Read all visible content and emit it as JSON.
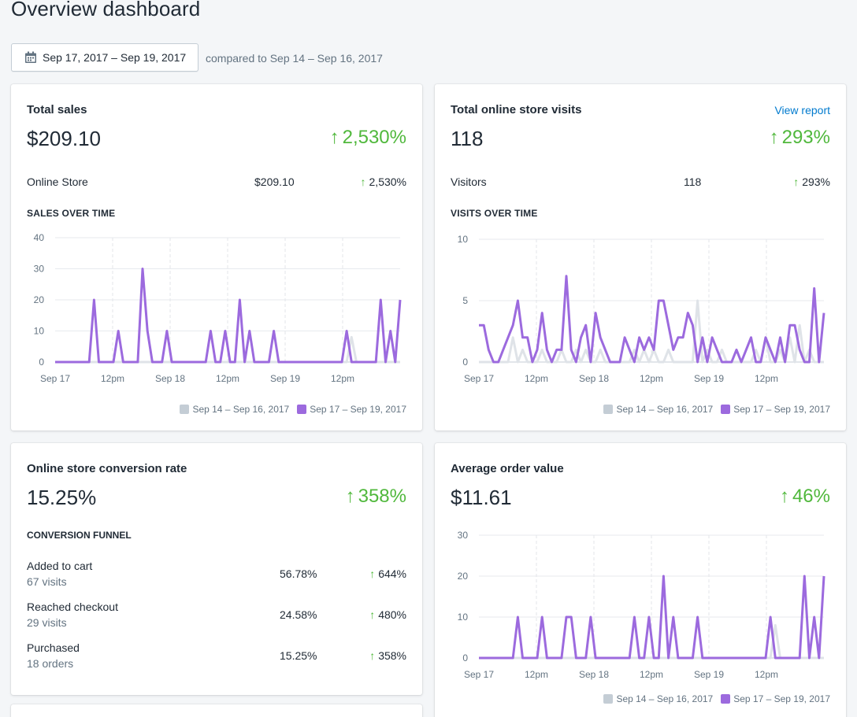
{
  "header": {
    "title": "Overview dashboard"
  },
  "date_range": {
    "label": "Sep 17, 2017 – Sep 19, 2017",
    "compare": "compared to Sep 14 – Sep 16, 2017"
  },
  "colors": {
    "current": "#9c6ade",
    "previous": "#dfe3e8",
    "positive": "#50b83c",
    "link": "#007ace"
  },
  "legend": {
    "previous": "Sep 14 – Sep 16, 2017",
    "current": "Sep 17 – Sep 19, 2017"
  },
  "total_sales": {
    "title": "Total sales",
    "value": "$209.10",
    "change": "2,530%",
    "row": {
      "label": "Online Store",
      "value": "$209.10",
      "change": "2,530%"
    },
    "section": "SALES OVER TIME"
  },
  "visits": {
    "title": "Total online store visits",
    "link": "View report",
    "value": "118",
    "change": "293%",
    "row": {
      "label": "Visitors",
      "value": "118",
      "change": "293%"
    },
    "section": "VISITS OVER TIME"
  },
  "conversion": {
    "title": "Online store conversion rate",
    "value": "15.25%",
    "change": "358%",
    "section": "CONVERSION FUNNEL",
    "rows": [
      {
        "label": "Added to cart",
        "sub": "67 visits",
        "pct": "56.78%",
        "change": "644%"
      },
      {
        "label": "Reached checkout",
        "sub": "29 visits",
        "pct": "24.58%",
        "change": "480%"
      },
      {
        "label": "Purchased",
        "sub": "18 orders",
        "pct": "15.25%",
        "change": "358%"
      }
    ]
  },
  "aov": {
    "title": "Average order value",
    "value": "$11.61",
    "change": "46%"
  },
  "chart_data": [
    {
      "id": "sales",
      "type": "line",
      "title": "SALES OVER TIME",
      "ylim": [
        0,
        40
      ],
      "yticks": [
        0,
        10,
        20,
        30,
        40
      ],
      "x_labels": [
        "Sep 17",
        "12pm",
        "Sep 18",
        "12pm",
        "Sep 19",
        "12pm"
      ],
      "x": [
        0,
        1,
        2,
        3,
        4,
        5,
        6,
        7,
        8,
        9,
        10,
        11,
        12,
        13,
        14,
        15,
        16,
        17,
        18,
        19,
        20,
        21,
        22,
        23,
        24,
        25,
        26,
        27,
        28,
        29,
        30,
        31,
        32,
        33,
        34,
        35,
        36,
        37,
        38,
        39,
        40,
        41,
        42,
        43,
        44,
        45,
        46,
        47,
        48,
        49,
        50,
        51,
        52,
        53,
        54,
        55,
        56,
        57,
        58,
        59,
        60,
        61,
        62,
        63,
        64,
        65,
        66,
        67,
        68,
        69,
        70,
        71
      ],
      "series": [
        {
          "name": "Sep 14 – Sep 16, 2017",
          "values": [
            0,
            0,
            0,
            0,
            0,
            0,
            0,
            0,
            0,
            0,
            0,
            0,
            0,
            0,
            0,
            0,
            0,
            0,
            0,
            0,
            0,
            0,
            0,
            0,
            0,
            0,
            0,
            0,
            0,
            0,
            0,
            0,
            0,
            0,
            0,
            0,
            0,
            0,
            0,
            0,
            0,
            0,
            0,
            0,
            0,
            0,
            0,
            0,
            0,
            0,
            0,
            0,
            0,
            0,
            0,
            0,
            0,
            0,
            0,
            0,
            0,
            8,
            0,
            0,
            0,
            0,
            0,
            0,
            0,
            0,
            0,
            0
          ]
        },
        {
          "name": "Sep 17 – Sep 19, 2017",
          "values": [
            0,
            0,
            0,
            0,
            0,
            0,
            0,
            0,
            20,
            0,
            0,
            0,
            0,
            10,
            0,
            0,
            0,
            0,
            30,
            10,
            0,
            0,
            0,
            10,
            0,
            0,
            0,
            0,
            0,
            0,
            0,
            0,
            10,
            0,
            0,
            10,
            0,
            0,
            20,
            0,
            10,
            0,
            0,
            0,
            0,
            10,
            0,
            0,
            0,
            0,
            0,
            0,
            0,
            0,
            0,
            0,
            0,
            0,
            0,
            0,
            10,
            0,
            0,
            0,
            0,
            0,
            0,
            20,
            0,
            10,
            0,
            20
          ]
        }
      ]
    },
    {
      "id": "visits",
      "type": "line",
      "title": "VISITS OVER TIME",
      "ylim": [
        0,
        10
      ],
      "yticks": [
        0,
        5,
        10
      ],
      "x_labels": [
        "Sep 17",
        "12pm",
        "Sep 18",
        "12pm",
        "Sep 19",
        "12pm"
      ],
      "x": [
        0,
        1,
        2,
        3,
        4,
        5,
        6,
        7,
        8,
        9,
        10,
        11,
        12,
        13,
        14,
        15,
        16,
        17,
        18,
        19,
        20,
        21,
        22,
        23,
        24,
        25,
        26,
        27,
        28,
        29,
        30,
        31,
        32,
        33,
        34,
        35,
        36,
        37,
        38,
        39,
        40,
        41,
        42,
        43,
        44,
        45,
        46,
        47,
        48,
        49,
        50,
        51,
        52,
        53,
        54,
        55,
        56,
        57,
        58,
        59,
        60,
        61,
        62,
        63,
        64,
        65,
        66,
        67,
        68,
        69,
        70,
        71
      ],
      "series": [
        {
          "name": "Sep 14 – Sep 16, 2017",
          "values": [
            0,
            0,
            0,
            0,
            0,
            0,
            0,
            2,
            0,
            1,
            0,
            0,
            0,
            1,
            0,
            0,
            0,
            1,
            0,
            0,
            1,
            0,
            1,
            0,
            0,
            1,
            0,
            0,
            0,
            0,
            0,
            0,
            1,
            0,
            1,
            0,
            1,
            0,
            0,
            1,
            0,
            0,
            0,
            0,
            0,
            5,
            0,
            1,
            0,
            0,
            1,
            0,
            0,
            0,
            0,
            0,
            0,
            1,
            0,
            2,
            0,
            0,
            1,
            0,
            2,
            0,
            3,
            0,
            1,
            0,
            0,
            0
          ]
        },
        {
          "name": "Sep 17 – Sep 19, 2017",
          "values": [
            3,
            3,
            1,
            0,
            0,
            1,
            2,
            3,
            5,
            2,
            2,
            0,
            1,
            4,
            1,
            0,
            1,
            1,
            7,
            1,
            0,
            2,
            3,
            0,
            4,
            2,
            1,
            0,
            0,
            0,
            2,
            1,
            0,
            2,
            1,
            2,
            1,
            5,
            5,
            3,
            1,
            2,
            2,
            4,
            3,
            0,
            2,
            0,
            2,
            1,
            0,
            0,
            0,
            1,
            0,
            1,
            2,
            0,
            0,
            2,
            1,
            0,
            2,
            0,
            3,
            3,
            1,
            0,
            0,
            6,
            0,
            4
          ]
        }
      ]
    },
    {
      "id": "aov",
      "type": "line",
      "title": "",
      "ylim": [
        0,
        30
      ],
      "yticks": [
        0,
        10,
        20,
        30
      ],
      "x_labels": [
        "Sep 17",
        "12pm",
        "Sep 18",
        "12pm",
        "Sep 19",
        "12pm"
      ],
      "x": [
        0,
        1,
        2,
        3,
        4,
        5,
        6,
        7,
        8,
        9,
        10,
        11,
        12,
        13,
        14,
        15,
        16,
        17,
        18,
        19,
        20,
        21,
        22,
        23,
        24,
        25,
        26,
        27,
        28,
        29,
        30,
        31,
        32,
        33,
        34,
        35,
        36,
        37,
        38,
        39,
        40,
        41,
        42,
        43,
        44,
        45,
        46,
        47,
        48,
        49,
        50,
        51,
        52,
        53,
        54,
        55,
        56,
        57,
        58,
        59,
        60,
        61,
        62,
        63,
        64,
        65,
        66,
        67,
        68,
        69,
        70,
        71
      ],
      "series": [
        {
          "name": "Sep 14 – Sep 16, 2017",
          "values": [
            0,
            0,
            0,
            0,
            0,
            0,
            0,
            0,
            0,
            0,
            0,
            0,
            0,
            0,
            0,
            0,
            0,
            0,
            0,
            0,
            0,
            0,
            0,
            0,
            0,
            0,
            0,
            0,
            0,
            0,
            0,
            0,
            0,
            0,
            0,
            0,
            0,
            0,
            0,
            0,
            0,
            0,
            0,
            0,
            0,
            0,
            0,
            0,
            0,
            0,
            0,
            0,
            0,
            0,
            0,
            0,
            0,
            0,
            0,
            0,
            0,
            8,
            0,
            0,
            0,
            0,
            0,
            0,
            0,
            0,
            0,
            0
          ]
        },
        {
          "name": "Sep 17 – Sep 19, 2017",
          "values": [
            0,
            0,
            0,
            0,
            0,
            0,
            0,
            0,
            10,
            0,
            0,
            0,
            0,
            10,
            0,
            0,
            0,
            0,
            10,
            10,
            0,
            0,
            0,
            10,
            0,
            0,
            0,
            0,
            0,
            0,
            0,
            0,
            10,
            0,
            0,
            10,
            0,
            0,
            20,
            0,
            10,
            0,
            0,
            0,
            0,
            10,
            0,
            0,
            0,
            0,
            0,
            0,
            0,
            0,
            0,
            0,
            0,
            0,
            0,
            0,
            10,
            0,
            0,
            0,
            0,
            0,
            0,
            20,
            0,
            10,
            0,
            20
          ]
        }
      ]
    }
  ]
}
